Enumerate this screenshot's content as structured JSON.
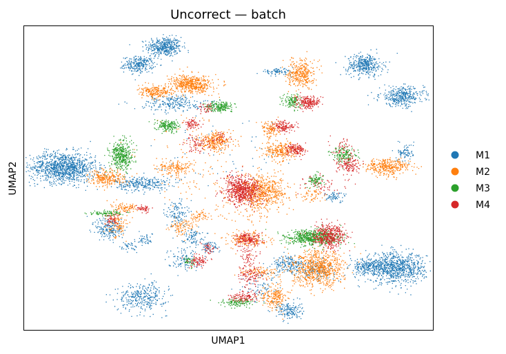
{
  "chart_data": {
    "type": "scatter",
    "title": "Uncorrect — batch",
    "xlabel": "UMAP1",
    "ylabel": "UMAP2",
    "xlim": [
      0,
      100
    ],
    "ylim": [
      0,
      100
    ],
    "xticks": [],
    "yticks": [],
    "grid": false,
    "legend": {
      "placement": "right",
      "entries": [
        "M1",
        "M2",
        "M3",
        "M4"
      ]
    },
    "series": [
      {
        "name": "M1",
        "color": "#1f77b4",
        "clusters": [
          {
            "x": 34.2,
            "y": 93.3,
            "sx": 2.1,
            "sy": 1.6,
            "n": 420
          },
          {
            "x": 28.0,
            "y": 87.5,
            "sx": 1.8,
            "sy": 1.3,
            "n": 260
          },
          {
            "x": 9.5,
            "y": 53.6,
            "sx": 4.0,
            "sy": 2.5,
            "n": 1100
          },
          {
            "x": 28.9,
            "y": 48.3,
            "sx": 3.3,
            "sy": 1.2,
            "n": 280
          },
          {
            "x": 83.2,
            "y": 87.3,
            "sx": 2.2,
            "sy": 1.8,
            "n": 380
          },
          {
            "x": 92.3,
            "y": 77.0,
            "sx": 2.7,
            "sy": 1.6,
            "n": 380
          },
          {
            "x": 61.9,
            "y": 85.1,
            "sx": 2.0,
            "sy": 0.5,
            "n": 80
          },
          {
            "x": 90.7,
            "y": 20.5,
            "sx": 3.7,
            "sy": 2.5,
            "n": 900
          },
          {
            "x": 84.0,
            "y": 20.9,
            "sx": 2.2,
            "sy": 1.0,
            "n": 180
          },
          {
            "x": 64.6,
            "y": 21.6,
            "sx": 2.0,
            "sy": 1.5,
            "n": 180
          },
          {
            "x": 71.0,
            "y": 20.0,
            "sx": 2.5,
            "sy": 1.5,
            "n": 150
          },
          {
            "x": 28.8,
            "y": 11.0,
            "sx": 3.0,
            "sy": 2.3,
            "n": 330
          },
          {
            "x": 64.6,
            "y": 6.5,
            "sx": 1.6,
            "sy": 1.5,
            "n": 160
          },
          {
            "x": 93.2,
            "y": 58.7,
            "sx": 1.0,
            "sy": 1.5,
            "n": 80
          },
          {
            "x": 20.8,
            "y": 33.4,
            "sx": 1.7,
            "sy": 1.9,
            "n": 200
          },
          {
            "x": 37.2,
            "y": 38.5,
            "sx": 1.3,
            "sy": 2.3,
            "n": 120
          },
          {
            "x": 41.0,
            "y": 31.0,
            "sx": 1.3,
            "sy": 1.3,
            "n": 80
          },
          {
            "x": 39.0,
            "y": 23.5,
            "sx": 2.0,
            "sy": 1.8,
            "n": 110
          },
          {
            "x": 45.0,
            "y": 27.5,
            "sx": 1.2,
            "sy": 1.0,
            "n": 60
          },
          {
            "x": 37.0,
            "y": 74.0,
            "sx": 5.0,
            "sy": 1.0,
            "n": 160
          },
          {
            "x": 75.7,
            "y": 44.1,
            "sx": 1.4,
            "sy": 0.9,
            "n": 60
          },
          {
            "x": 58.0,
            "y": 14.0,
            "sx": 2.5,
            "sy": 2.5,
            "n": 80
          },
          {
            "x": 36.0,
            "y": 76.0,
            "sx": 2.5,
            "sy": 0.8,
            "n": 80
          },
          {
            "x": 25.5,
            "y": 27.5,
            "sx": 1.0,
            "sy": 1.0,
            "n": 40
          },
          {
            "x": 29.5,
            "y": 30.0,
            "sx": 1.0,
            "sy": 1.0,
            "n": 40
          },
          {
            "x": 50.0,
            "y": 58.0,
            "sx": 9.0,
            "sy": 7.0,
            "n": 60
          }
        ]
      },
      {
        "name": "M2",
        "color": "#ff7f0e",
        "clusters": [
          {
            "x": 40.9,
            "y": 81.0,
            "sx": 2.5,
            "sy": 1.5,
            "n": 520
          },
          {
            "x": 32.0,
            "y": 78.4,
            "sx": 2.0,
            "sy": 1.0,
            "n": 220
          },
          {
            "x": 67.6,
            "y": 84.5,
            "sx": 1.6,
            "sy": 2.3,
            "n": 350
          },
          {
            "x": 58.7,
            "y": 46.0,
            "sx": 2.9,
            "sy": 2.5,
            "n": 550
          },
          {
            "x": 88.8,
            "y": 53.8,
            "sx": 2.7,
            "sy": 1.4,
            "n": 350
          },
          {
            "x": 71.9,
            "y": 20.3,
            "sx": 3.2,
            "sy": 2.9,
            "n": 800
          },
          {
            "x": 20.2,
            "y": 50.1,
            "sx": 2.2,
            "sy": 1.4,
            "n": 260
          },
          {
            "x": 62.7,
            "y": 59.1,
            "sx": 2.1,
            "sy": 1.5,
            "n": 260
          },
          {
            "x": 47.1,
            "y": 62.7,
            "sx": 2.1,
            "sy": 1.4,
            "n": 200
          },
          {
            "x": 60.3,
            "y": 66.3,
            "sx": 1.2,
            "sy": 1.5,
            "n": 120
          },
          {
            "x": 37.1,
            "y": 53.5,
            "sx": 2.2,
            "sy": 1.0,
            "n": 150
          },
          {
            "x": 54.4,
            "y": 30.0,
            "sx": 2.5,
            "sy": 1.3,
            "n": 170
          },
          {
            "x": 61.2,
            "y": 11.0,
            "sx": 1.5,
            "sy": 2.0,
            "n": 200
          },
          {
            "x": 58.0,
            "y": 19.0,
            "sx": 3.0,
            "sy": 1.0,
            "n": 100
          },
          {
            "x": 38.5,
            "y": 34.0,
            "sx": 1.5,
            "sy": 1.3,
            "n": 90
          },
          {
            "x": 43.0,
            "y": 37.5,
            "sx": 1.2,
            "sy": 1.0,
            "n": 60
          },
          {
            "x": 22.7,
            "y": 35.5,
            "sx": 1.3,
            "sy": 2.5,
            "n": 130
          },
          {
            "x": 25.0,
            "y": 40.5,
            "sx": 1.8,
            "sy": 0.8,
            "n": 70
          },
          {
            "x": 70.0,
            "y": 44.5,
            "sx": 1.5,
            "sy": 1.2,
            "n": 60
          },
          {
            "x": 46.0,
            "y": 61.0,
            "sx": 1.5,
            "sy": 1.2,
            "n": 80
          },
          {
            "x": 41.0,
            "y": 56.0,
            "sx": 6.0,
            "sy": 8.0,
            "n": 120
          },
          {
            "x": 52.0,
            "y": 43.0,
            "sx": 3.5,
            "sy": 5.0,
            "n": 100
          },
          {
            "x": 57.5,
            "y": 41.0,
            "sx": 1.5,
            "sy": 2.5,
            "n": 60
          }
        ]
      },
      {
        "name": "M3",
        "color": "#2ca02c",
        "clusters": [
          {
            "x": 23.6,
            "y": 57.5,
            "sx": 1.4,
            "sy": 2.4,
            "n": 400
          },
          {
            "x": 47.9,
            "y": 73.7,
            "sx": 1.6,
            "sy": 0.8,
            "n": 200
          },
          {
            "x": 35.2,
            "y": 67.3,
            "sx": 1.3,
            "sy": 1.0,
            "n": 180
          },
          {
            "x": 70.4,
            "y": 30.5,
            "sx": 3.3,
            "sy": 1.3,
            "n": 620
          },
          {
            "x": 65.4,
            "y": 75.2,
            "sx": 1.2,
            "sy": 1.3,
            "n": 130
          },
          {
            "x": 78.3,
            "y": 57.5,
            "sx": 1.5,
            "sy": 1.4,
            "n": 160
          },
          {
            "x": 71.3,
            "y": 49.3,
            "sx": 1.1,
            "sy": 1.0,
            "n": 90
          },
          {
            "x": 52.2,
            "y": 9.2,
            "sx": 1.9,
            "sy": 0.7,
            "n": 130
          },
          {
            "x": 20.2,
            "y": 38.5,
            "sx": 2.2,
            "sy": 0.5,
            "n": 90
          },
          {
            "x": 40.5,
            "y": 22.5,
            "sx": 0.8,
            "sy": 0.9,
            "n": 40
          }
        ]
      },
      {
        "name": "M4",
        "color": "#d62728",
        "clusters": [
          {
            "x": 53.3,
            "y": 46.1,
            "sx": 2.2,
            "sy": 2.3,
            "n": 650
          },
          {
            "x": 74.6,
            "y": 31.1,
            "sx": 2.0,
            "sy": 1.8,
            "n": 450
          },
          {
            "x": 69.3,
            "y": 75.0,
            "sx": 1.4,
            "sy": 1.0,
            "n": 220
          },
          {
            "x": 63.3,
            "y": 67.1,
            "sx": 1.3,
            "sy": 1.0,
            "n": 130
          },
          {
            "x": 66.3,
            "y": 59.5,
            "sx": 1.3,
            "sy": 0.9,
            "n": 140
          },
          {
            "x": 79.3,
            "y": 54.5,
            "sx": 1.4,
            "sy": 1.3,
            "n": 140
          },
          {
            "x": 41.0,
            "y": 68.0,
            "sx": 1.0,
            "sy": 0.9,
            "n": 70
          },
          {
            "x": 42.5,
            "y": 61.5,
            "sx": 2.0,
            "sy": 1.5,
            "n": 80
          },
          {
            "x": 54.6,
            "y": 30.0,
            "sx": 1.7,
            "sy": 1.1,
            "n": 170
          },
          {
            "x": 53.8,
            "y": 11.0,
            "sx": 1.8,
            "sy": 0.9,
            "n": 110
          },
          {
            "x": 55.5,
            "y": 18.0,
            "sx": 1.5,
            "sy": 1.5,
            "n": 90
          },
          {
            "x": 55.0,
            "y": 24.0,
            "sx": 1.2,
            "sy": 2.5,
            "n": 80
          },
          {
            "x": 42.8,
            "y": 23.0,
            "sx": 1.4,
            "sy": 1.0,
            "n": 90
          },
          {
            "x": 45.0,
            "y": 27.0,
            "sx": 0.8,
            "sy": 1.0,
            "n": 40
          },
          {
            "x": 29.0,
            "y": 40.0,
            "sx": 1.0,
            "sy": 0.5,
            "n": 50
          },
          {
            "x": 21.5,
            "y": 36.5,
            "sx": 1.0,
            "sy": 1.0,
            "n": 50
          },
          {
            "x": 44.5,
            "y": 73.0,
            "sx": 1.0,
            "sy": 0.8,
            "n": 40
          },
          {
            "x": 72.5,
            "y": 48.0,
            "sx": 3.0,
            "sy": 1.5,
            "n": 60
          },
          {
            "x": 78.0,
            "y": 60.0,
            "sx": 1.5,
            "sy": 1.5,
            "n": 50
          },
          {
            "x": 48.0,
            "y": 63.5,
            "sx": 1.0,
            "sy": 1.0,
            "n": 30
          }
        ]
      }
    ]
  }
}
